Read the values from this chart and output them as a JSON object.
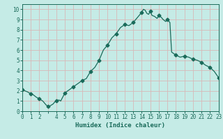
{
  "title": "",
  "xlabel": "Humidex (Indice chaleur)",
  "ylabel": "",
  "background_color": "#c5ebe6",
  "plot_bg_color": "#c5ebe6",
  "line_color": "#1a6b5a",
  "marker_color": "#1a6b5a",
  "grid_color": "#d8b8b8",
  "x_values": [
    0,
    0.3,
    0.6,
    1.0,
    1.3,
    1.6,
    2.0,
    2.2,
    2.4,
    2.6,
    2.8,
    3.0,
    3.2,
    3.4,
    3.6,
    3.8,
    4.0,
    4.3,
    4.5,
    5.0,
    5.5,
    6.0,
    6.5,
    7.0,
    7.5,
    8.0,
    8.5,
    9.0,
    9.5,
    10.0,
    10.5,
    11.0,
    11.5,
    12.0,
    12.5,
    13.0,
    13.5,
    14.0,
    14.2,
    14.4,
    14.6,
    14.8,
    15.0,
    15.2,
    15.5,
    15.8,
    16.0,
    16.3,
    16.5,
    16.8,
    17.0,
    17.3,
    17.5,
    18.0,
    18.5,
    19.0,
    19.5,
    20.0,
    20.5,
    21.0,
    21.5,
    22.0,
    22.5,
    23.0
  ],
  "y_values": [
    2.1,
    2.0,
    1.9,
    1.7,
    1.6,
    1.4,
    1.2,
    1.1,
    1.0,
    0.8,
    0.6,
    0.5,
    0.5,
    0.6,
    0.7,
    0.9,
    1.0,
    1.1,
    1.0,
    1.8,
    2.1,
    2.4,
    2.7,
    3.0,
    3.2,
    3.9,
    4.3,
    5.0,
    6.0,
    6.5,
    7.2,
    7.6,
    8.2,
    8.5,
    8.4,
    8.7,
    9.2,
    9.7,
    10.0,
    9.9,
    9.6,
    9.5,
    9.8,
    9.4,
    9.3,
    9.1,
    9.4,
    9.2,
    9.0,
    8.8,
    9.0,
    8.7,
    5.8,
    5.5,
    5.3,
    5.4,
    5.3,
    5.1,
    5.0,
    4.8,
    4.5,
    4.3,
    3.9,
    3.3
  ],
  "marker_x": [
    0,
    1,
    2,
    3,
    4,
    5,
    6,
    7,
    8,
    9,
    10,
    11,
    12,
    13,
    14,
    15,
    16,
    17,
    18,
    19,
    20,
    21,
    22,
    23
  ],
  "marker_y": [
    2.1,
    1.7,
    1.2,
    0.5,
    1.0,
    1.8,
    2.4,
    3.0,
    3.9,
    5.0,
    6.5,
    7.6,
    8.5,
    8.7,
    9.7,
    9.8,
    9.4,
    9.0,
    5.5,
    5.4,
    5.1,
    4.8,
    4.3,
    3.3
  ],
  "xlim": [
    0,
    23
  ],
  "ylim": [
    0,
    10.5
  ],
  "yticks": [
    0,
    1,
    2,
    3,
    4,
    5,
    6,
    7,
    8,
    9,
    10
  ],
  "xticks": [
    0,
    1,
    2,
    3,
    4,
    5,
    6,
    7,
    8,
    9,
    10,
    11,
    12,
    13,
    14,
    15,
    16,
    17,
    18,
    19,
    20,
    21,
    22,
    23
  ],
  "xtick_labels": [
    "0",
    "1",
    "2",
    "",
    "4",
    "5",
    "6",
    "7",
    "8",
    "9",
    "10",
    "11",
    "12",
    "13",
    "14",
    "15",
    "16",
    "17",
    "18",
    "19",
    "20",
    "21",
    "22",
    "23"
  ],
  "line_width": 0.9,
  "marker_size": 2.5,
  "font_size": 5.5,
  "xlabel_fontsize": 6.5
}
